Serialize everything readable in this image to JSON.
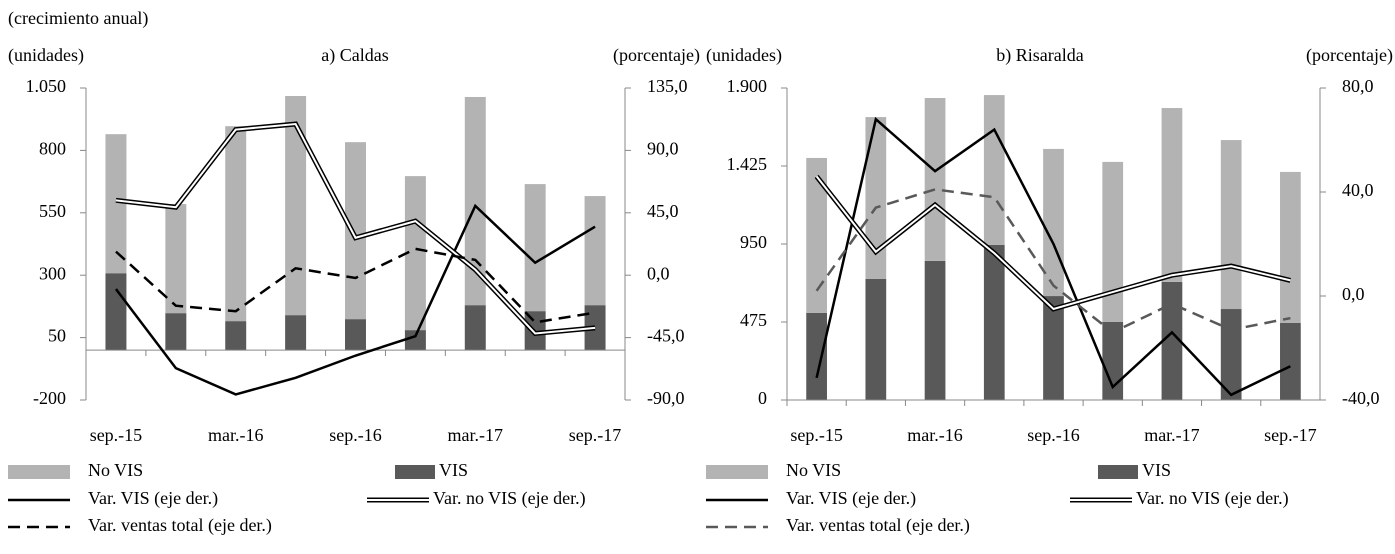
{
  "subtitle": "(crecimiento anual)",
  "chart_data": [
    {
      "type": "bar",
      "title": "a) Caldas",
      "y_label": "(unidades)",
      "y2_label": "(porcentaje)",
      "categories": [
        "sep.-15",
        null,
        "mar.-16",
        null,
        "sep.-16",
        null,
        "mar.-17",
        null,
        "sep.-17"
      ],
      "ylim": [
        -200,
        1050
      ],
      "yticks": [
        -200,
        50,
        300,
        550,
        800,
        {
          "value": 1050,
          "label": "1.050"
        }
      ],
      "y2lim": [
        -90,
        135
      ],
      "y2ticks": [
        {
          "value": -90,
          "label": "-90,0"
        },
        {
          "value": -45,
          "label": "-45,0"
        },
        {
          "value": 0,
          "label": "0,0"
        },
        {
          "value": 45,
          "label": "45,0"
        },
        {
          "value": 90,
          "label": "90,0"
        },
        {
          "value": 135,
          "label": "135,0"
        }
      ],
      "stacked": true,
      "series": [
        {
          "name": "No VIS",
          "type": "bar",
          "color": "#b3b3b3",
          "values": [
            557,
            437,
            781,
            878,
            709,
            617,
            834,
            509,
            437
          ]
        },
        {
          "name": "VIS",
          "type": "bar",
          "color": "#595959",
          "values": [
            308,
            148,
            116,
            140,
            124,
            80,
            180,
            156,
            180
          ]
        },
        {
          "name": "Var. VIS (eje der.)",
          "type": "line",
          "axis": "y2",
          "color": "#000000",
          "style": "solid",
          "values": [
            -10,
            -67,
            -86,
            -74,
            -58,
            -44,
            50,
            9,
            35
          ]
        },
        {
          "name": "Var. no VIS (eje der.)",
          "type": "line",
          "axis": "y2",
          "color": "#000000",
          "style": "double",
          "values": [
            54,
            49,
            105,
            109,
            27,
            39,
            4,
            -42,
            -38
          ]
        },
        {
          "name": "Var. ventas  total (eje der.)",
          "type": "line",
          "axis": "y2",
          "color": "#000000",
          "style": "dashed",
          "values": [
            17,
            -22,
            -26,
            5,
            -2,
            19,
            11,
            -34,
            -27
          ]
        }
      ]
    },
    {
      "type": "bar",
      "title": "b) Risaralda",
      "y_label": "(unidades)",
      "y2_label": "(porcentaje)",
      "categories": [
        "sep.-15",
        null,
        "mar.-16",
        null,
        "sep.-16",
        null,
        "mar.-17",
        null,
        "sep.-17"
      ],
      "ylim": [
        0,
        1900
      ],
      "yticks": [
        0,
        475,
        950,
        {
          "value": 1425,
          "label": "1.425"
        },
        {
          "value": 1900,
          "label": "1.900"
        }
      ],
      "y2lim": [
        -40,
        80
      ],
      "y2ticks": [
        {
          "value": -40,
          "label": "-40,0"
        },
        {
          "value": 0,
          "label": "0,0"
        },
        {
          "value": 40,
          "label": "40,0"
        },
        {
          "value": 80,
          "label": "80,0"
        }
      ],
      "stacked": true,
      "series": [
        {
          "name": "No VIS",
          "type": "bar",
          "color": "#b3b3b3",
          "values": [
            944,
            986,
            992,
            913,
            896,
            975,
            1059,
            1029,
            920
          ]
        },
        {
          "name": "VIS",
          "type": "bar",
          "color": "#595959",
          "values": [
            530,
            737,
            847,
            944,
            633,
            475,
            719,
            554,
            469
          ]
        },
        {
          "name": "Var. VIS (eje der.)",
          "type": "line",
          "axis": "y2",
          "color": "#000000",
          "style": "solid",
          "values": [
            -31.5,
            68,
            48,
            64,
            20,
            -35,
            -14,
            -38,
            -27
          ]
        },
        {
          "name": "Var. no VIS (eje der.)",
          "type": "line",
          "axis": "y2",
          "color": "#000000",
          "style": "double",
          "values": [
            46,
            17,
            35,
            16.5,
            -5,
            1.5,
            8,
            11.5,
            6
          ]
        },
        {
          "name": "Var. ventas total (eje der.)",
          "type": "line",
          "axis": "y2",
          "color": "#595959",
          "style": "dashed",
          "values": [
            2,
            34,
            41,
            38,
            4,
            -14,
            -3,
            -13,
            -8.5
          ]
        }
      ]
    }
  ]
}
